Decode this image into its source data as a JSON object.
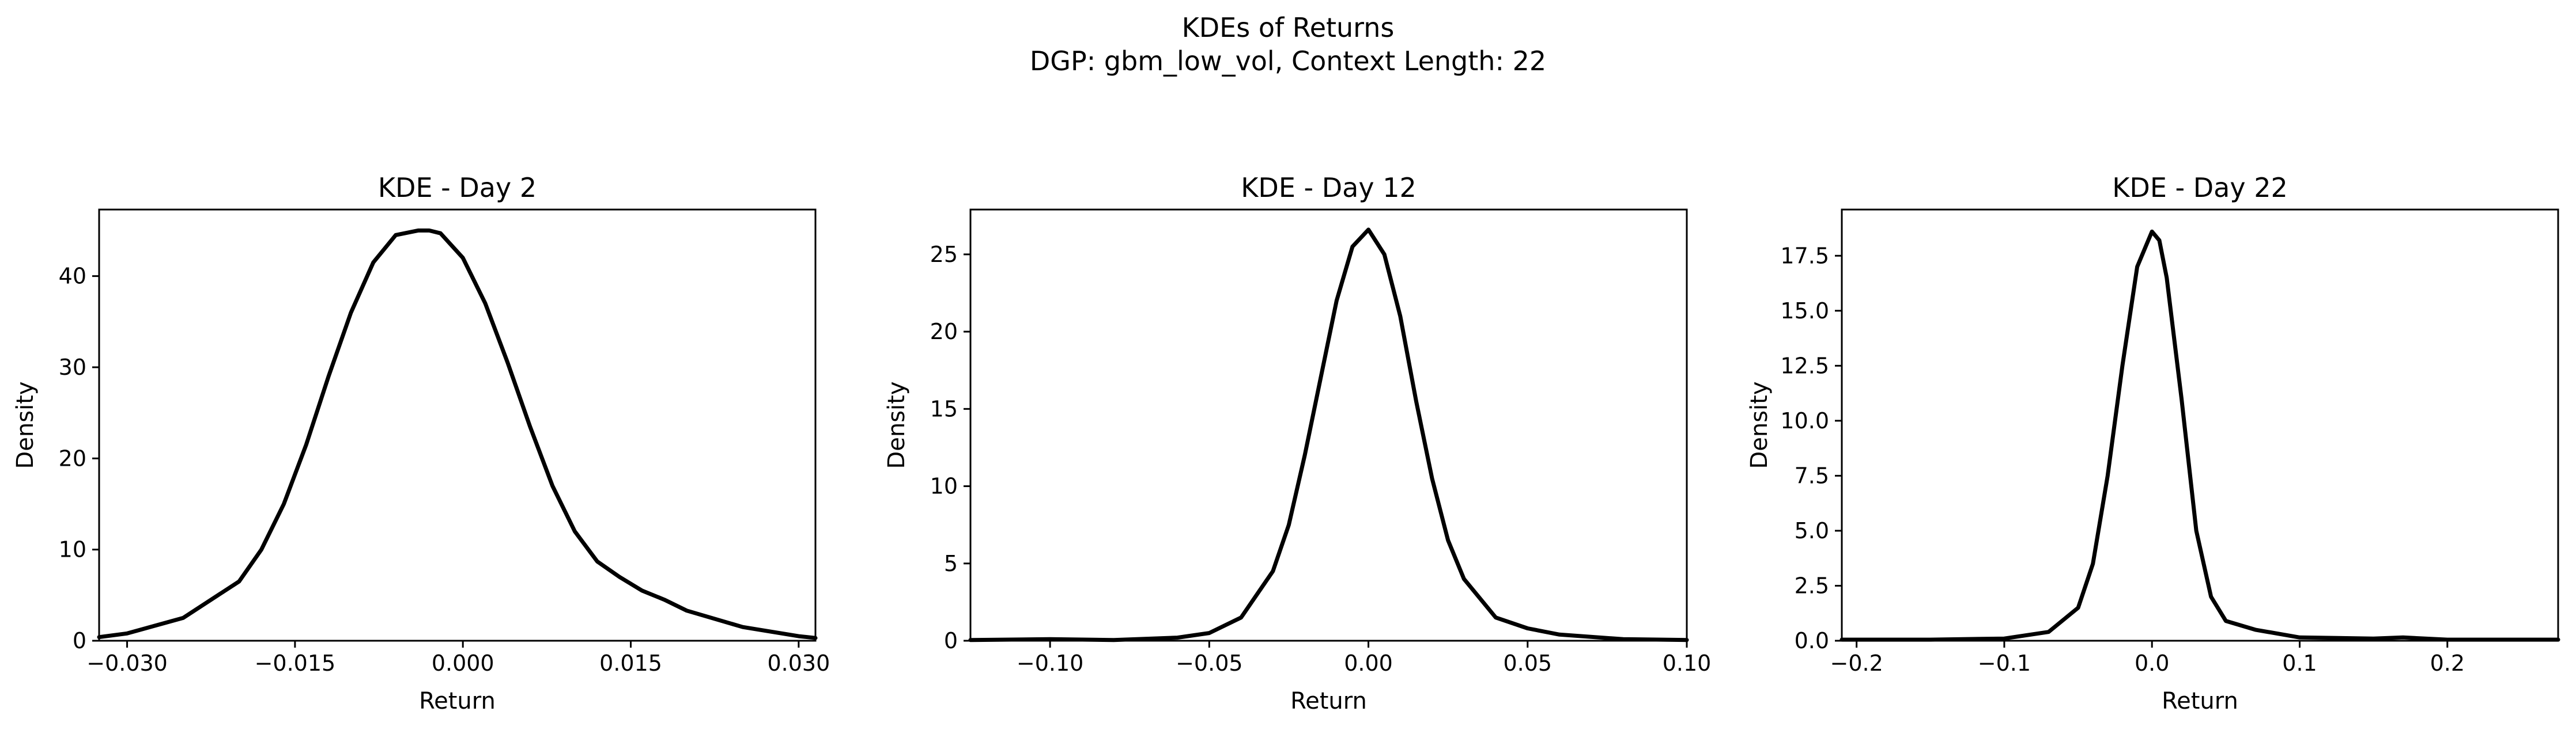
{
  "figure": {
    "title_line1": "KDEs of Returns",
    "title_line2": "DGP: gbm_low_vol, Context Length: 22",
    "line_color": "#000000"
  },
  "chart_data": [
    {
      "type": "line",
      "title": "KDE - Day 2",
      "xlabel": "Return",
      "ylabel": "Density",
      "xlim": [
        -0.0325,
        0.0315
      ],
      "ylim": [
        0,
        47.3
      ],
      "xticks": [
        -0.03,
        -0.015,
        0.0,
        0.015,
        0.03
      ],
      "xtick_labels": [
        "−0.030",
        "−0.015",
        "0.000",
        "0.015",
        "0.030"
      ],
      "yticks": [
        0,
        10,
        20,
        30,
        40
      ],
      "ytick_labels": [
        "0",
        "10",
        "20",
        "30",
        "40"
      ],
      "grid": false,
      "series": [
        {
          "x": [
            -0.0325,
            -0.03,
            -0.025,
            -0.02,
            -0.018,
            -0.016,
            -0.014,
            -0.012,
            -0.01,
            -0.008,
            -0.006,
            -0.004,
            -0.003,
            -0.002,
            0.0,
            0.002,
            0.004,
            0.006,
            0.008,
            0.01,
            0.012,
            0.014,
            0.016,
            0.018,
            0.02,
            0.025,
            0.03,
            0.0315
          ],
          "y": [
            0.4,
            0.8,
            2.5,
            6.5,
            10.0,
            15.0,
            21.5,
            29.0,
            36.0,
            41.5,
            44.5,
            45.0,
            45.0,
            44.7,
            42.0,
            37.0,
            30.5,
            23.5,
            17.0,
            12.0,
            8.7,
            7.0,
            5.5,
            4.5,
            3.3,
            1.5,
            0.5,
            0.3
          ]
        }
      ]
    },
    {
      "type": "line",
      "title": "KDE - Day 12",
      "xlabel": "Return",
      "ylabel": "Density",
      "xlim": [
        -0.125,
        0.1
      ],
      "ylim": [
        0,
        27.9
      ],
      "xticks": [
        -0.1,
        -0.05,
        0.0,
        0.05,
        0.1
      ],
      "xtick_labels": [
        "−0.10",
        "−0.05",
        "0.00",
        "0.05",
        "0.10"
      ],
      "yticks": [
        0,
        5,
        10,
        15,
        20,
        25
      ],
      "ytick_labels": [
        "0",
        "5",
        "10",
        "15",
        "20",
        "25"
      ],
      "grid": false,
      "series": [
        {
          "x": [
            -0.125,
            -0.1,
            -0.08,
            -0.06,
            -0.05,
            -0.04,
            -0.03,
            -0.025,
            -0.02,
            -0.015,
            -0.01,
            -0.005,
            0.0,
            0.005,
            0.01,
            0.015,
            0.02,
            0.025,
            0.03,
            0.04,
            0.05,
            0.06,
            0.08,
            0.1
          ],
          "y": [
            0.05,
            0.1,
            0.05,
            0.2,
            0.5,
            1.5,
            4.5,
            7.5,
            12.0,
            17.0,
            22.0,
            25.5,
            26.6,
            25.0,
            21.0,
            15.5,
            10.5,
            6.5,
            4.0,
            1.5,
            0.8,
            0.4,
            0.1,
            0.05
          ]
        }
      ]
    },
    {
      "type": "line",
      "title": "KDE - Day 22",
      "xlabel": "Return",
      "ylabel": "Density",
      "xlim": [
        -0.21,
        0.275
      ],
      "ylim": [
        0,
        19.6
      ],
      "xticks": [
        -0.2,
        -0.1,
        0.0,
        0.1,
        0.2
      ],
      "xtick_labels": [
        "−0.2",
        "−0.1",
        "0.0",
        "0.1",
        "0.2"
      ],
      "yticks": [
        0,
        2.5,
        5.0,
        7.5,
        10.0,
        12.5,
        15.0,
        17.5
      ],
      "ytick_labels": [
        "0.0",
        "2.5",
        "5.0",
        "7.5",
        "10.0",
        "12.5",
        "15.0",
        "17.5"
      ],
      "grid": false,
      "series": [
        {
          "x": [
            -0.21,
            -0.15,
            -0.1,
            -0.07,
            -0.05,
            -0.04,
            -0.03,
            -0.02,
            -0.01,
            0.0,
            0.005,
            0.01,
            0.02,
            0.03,
            0.04,
            0.05,
            0.07,
            0.1,
            0.15,
            0.17,
            0.2,
            0.275
          ],
          "y": [
            0.05,
            0.05,
            0.1,
            0.4,
            1.5,
            3.5,
            7.5,
            12.5,
            17.0,
            18.6,
            18.2,
            16.5,
            11.0,
            5.0,
            2.0,
            0.9,
            0.5,
            0.15,
            0.1,
            0.15,
            0.05,
            0.05
          ]
        }
      ]
    }
  ]
}
